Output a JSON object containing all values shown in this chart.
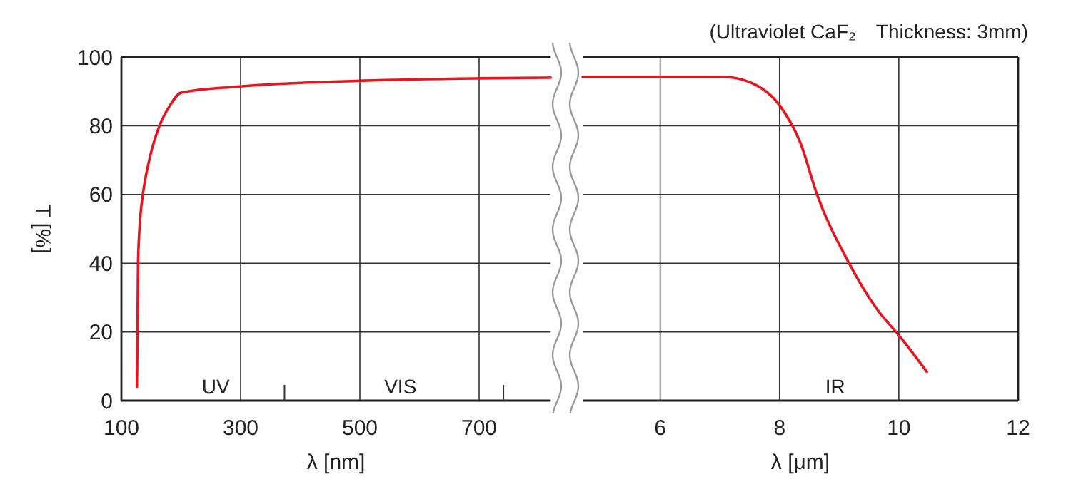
{
  "chart_data": [
    {
      "type": "line",
      "xlabel": "λ [nm]",
      "ylabel": "T [%]",
      "x": [
        126,
        127,
        128,
        132,
        136,
        148,
        164,
        180,
        200,
        295,
        500,
        700,
        820
      ],
      "series": [
        {
          "color": "#e8141e",
          "values": [
            4,
            20,
            40.5,
            54,
            60,
            71,
            80,
            85.5,
            89.6,
            91.4,
            93.1,
            93.8,
            94
          ]
        }
      ],
      "xlim": [
        100,
        820
      ],
      "xticks": [
        100,
        300,
        500,
        700
      ],
      "ylim": [
        0,
        100
      ],
      "yticks": [
        0,
        20,
        40,
        60,
        80,
        100
      ],
      "grid": true,
      "marker": "none",
      "line_style": "solid",
      "annotations": [
        "UV",
        "VIS"
      ]
    },
    {
      "type": "line",
      "title": "(Ultraviolet CaF₂　Thickness: 3mm)",
      "xlabel": "λ [μm]",
      "x": [
        4.7,
        7.07,
        7.54,
        8.02,
        8.35,
        8.63,
        9.15,
        9.63,
        10.03,
        10.47
      ],
      "series": [
        {
          "color": "#e8141e",
          "values": [
            94.2,
            94.2,
            92.4,
            85.5,
            75,
            59.9,
            40.5,
            26.7,
            18.4,
            8.4
          ]
        }
      ],
      "xlim": [
        4.7,
        12
      ],
      "xticks": [
        6,
        8,
        10,
        12
      ],
      "ylim": [
        0,
        100
      ],
      "yticks": [
        0,
        20,
        40,
        60,
        80,
        100
      ],
      "tick_labels": "x",
      "grid": true,
      "marker": "none",
      "line_style": "solid",
      "annotations": [
        "IR"
      ]
    }
  ]
}
